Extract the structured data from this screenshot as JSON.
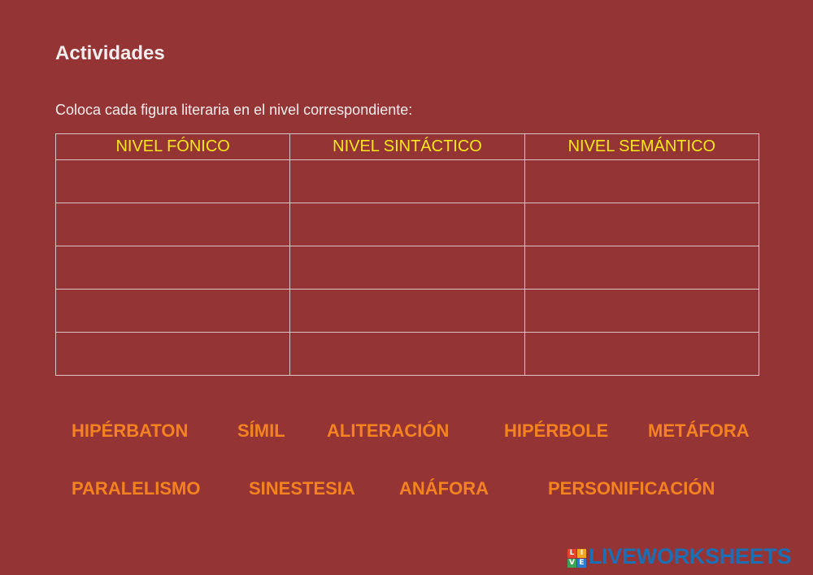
{
  "header": {
    "title": "Actividades",
    "instruction": "Coloca cada figura literaria en el nivel correspondiente:"
  },
  "table": {
    "headers": [
      "NIVEL FÓNICO",
      "NIVEL SINTÁCTICO",
      "NIVEL SEMÁNTICO"
    ]
  },
  "word_bank": {
    "rows": [
      [
        "HIPÉRBATON",
        "SÍMIL",
        "ALITERACIÓN",
        "HIPÉRBOLE",
        "METÁFORA"
      ],
      [
        "PARALELISMO",
        "SINESTESIA",
        "ANÁFORA",
        "PERSONIFICACIÓN"
      ]
    ]
  },
  "logo": {
    "icon_letters": [
      "L",
      "I",
      "V",
      "E"
    ],
    "text": "LIVEWORKSHEETS"
  }
}
